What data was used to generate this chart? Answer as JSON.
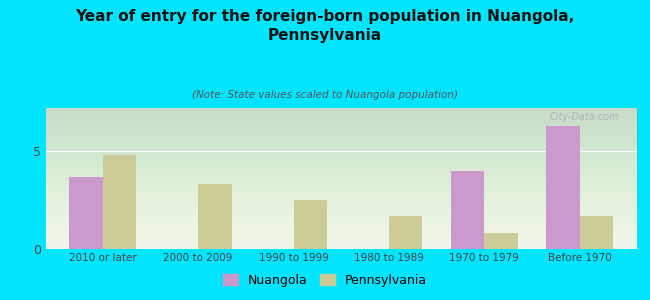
{
  "title": "Year of entry for the foreign-born population in Nuangola,\nPennsylvania",
  "subtitle": "(Note: State values scaled to Nuangola population)",
  "categories": [
    "2010 or later",
    "2000 to 2009",
    "1990 to 1999",
    "1980 to 1989",
    "1970 to 1979",
    "Before 1970"
  ],
  "nuangola_values": [
    3.7,
    0,
    0,
    0,
    4.0,
    6.3
  ],
  "pennsylvania_values": [
    4.8,
    3.3,
    2.5,
    1.7,
    0.8,
    1.7
  ],
  "nuangola_color": "#cc99cc",
  "pennsylvania_color": "#cccc99",
  "background_outer": "#00e5ff",
  "background_chart": "#eef5e8",
  "title_color": "#111111",
  "subtitle_color": "#555555",
  "ylim": [
    0,
    7.2
  ],
  "yticks": [
    0,
    5
  ],
  "bar_width": 0.35,
  "watermark": "City-Data.com"
}
